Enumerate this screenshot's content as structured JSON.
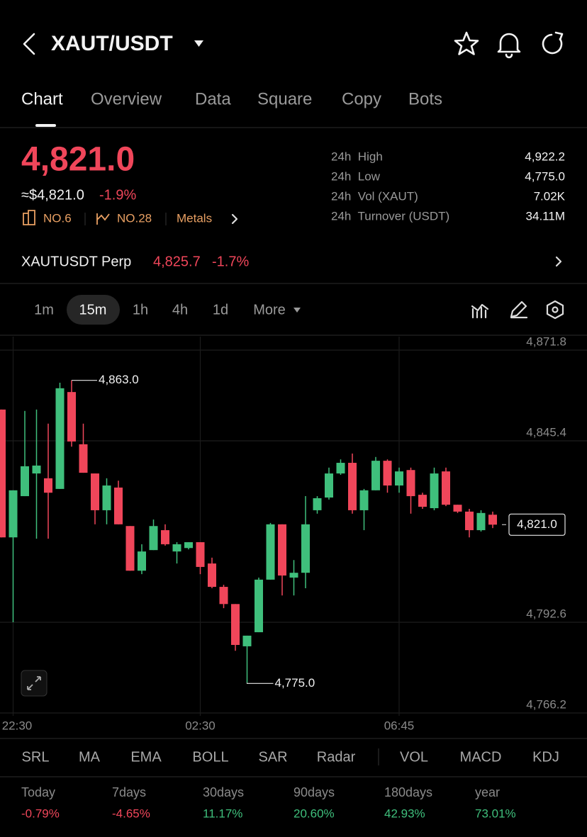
{
  "header": {
    "title": "XAUT/USDT"
  },
  "tabs": [
    "Chart",
    "Overview",
    "Data",
    "Square",
    "Copy",
    "Bots"
  ],
  "price": {
    "last": "4,821.0",
    "approx": "≈$4,821.0",
    "change": "-1.9%"
  },
  "badges": [
    "NO.6",
    "NO.28",
    "Metals"
  ],
  "stats": [
    {
      "label": "24h  High",
      "value": "4,922.2"
    },
    {
      "label": "24h  Low",
      "value": "4,775.0"
    },
    {
      "label": "24h  Vol (XAUT)",
      "value": "7.02K"
    },
    {
      "label": "24h  Turnover (USDT)",
      "value": "34.11M"
    }
  ],
  "perp": {
    "name": "XAUTUSDT Perp",
    "price": "4,825.7",
    "change": "-1.7%"
  },
  "timeframes": [
    "1m",
    "15m",
    "1h",
    "4h",
    "1d",
    "More"
  ],
  "indicators": [
    "SRL",
    "MA",
    "EMA",
    "BOLL",
    "SAR",
    "Radar",
    "VOL",
    "MACD",
    "KDJ"
  ],
  "performance": [
    {
      "period": "Today",
      "value": "-0.79%"
    },
    {
      "period": "7days",
      "value": "-4.65%"
    },
    {
      "period": "30days",
      "value": "11.17%"
    },
    {
      "period": "90days",
      "value": "20.60%"
    },
    {
      "period": "180days",
      "value": "42.93%"
    },
    {
      "period": "year",
      "value": "73.01%"
    }
  ],
  "chart_data": {
    "type": "candlestick",
    "categories": [
      null,
      "22:30",
      null,
      null,
      null,
      null,
      null,
      null,
      null,
      null,
      null,
      null,
      null,
      null,
      null,
      null,
      null,
      "02:30",
      null,
      null,
      null,
      null,
      null,
      null,
      null,
      null,
      null,
      null,
      null,
      null,
      null,
      null,
      null,
      null,
      "06:45",
      null,
      null,
      null,
      null,
      null,
      null,
      null,
      null
    ],
    "open": [
      4854.5,
      4817.3,
      4829.3,
      4835.9,
      4834.5,
      4831.4,
      4859.6,
      4844.4,
      4835.9,
      4825.2,
      4831.8,
      4820.6,
      4807.6,
      4813.6,
      4819.4,
      4813.2,
      4814.2,
      4815.9,
      4809.7,
      4802.9,
      4797.9,
      4785.6,
      4789.7,
      4805.0,
      4821.1,
      4805.6,
      4807.0,
      4825.2,
      4828.9,
      4835.9,
      4839.0,
      4825.2,
      4831.0,
      4839.6,
      4832.4,
      4836.9,
      4829.7,
      4825.8,
      4836.5,
      4826.8,
      4824.8,
      4819.4,
      4823.9
    ],
    "high": [
      4854.5,
      4831.0,
      4854.1,
      4854.5,
      4850.4,
      4862.3,
      4863.0,
      4850.4,
      4835.9,
      4834.5,
      4833.8,
      4820.6,
      4815.3,
      4822.5,
      4821.1,
      4815.9,
      4815.9,
      4815.9,
      4811.4,
      4803.5,
      4797.9,
      4788.7,
      4805.6,
      4821.5,
      4821.1,
      4810.7,
      4829.3,
      4829.3,
      4837.6,
      4840.0,
      4841.7,
      4831.4,
      4840.7,
      4840.0,
      4837.6,
      4837.6,
      4830.3,
      4837.6,
      4837.6,
      4826.8,
      4825.6,
      4825.2,
      4824.8
    ],
    "low": [
      4817.3,
      4792.6,
      4829.3,
      4816.9,
      4816.9,
      4831.4,
      4843.7,
      4836.1,
      4821.1,
      4821.1,
      4821.1,
      4807.6,
      4806.6,
      4813.6,
      4814.9,
      4809.7,
      4813.8,
      4806.6,
      4802.5,
      4796.7,
      4784.3,
      4775.0,
      4789.7,
      4805.0,
      4800.4,
      4800.4,
      4802.5,
      4824.2,
      4828.3,
      4835.5,
      4824.2,
      4819.4,
      4831.0,
      4830.3,
      4830.3,
      4824.2,
      4825.6,
      4825.2,
      4826.4,
      4824.4,
      4817.3,
      4819.0,
      4820.0
    ],
    "close": [
      4817.3,
      4831.0,
      4838.0,
      4838.2,
      4830.3,
      4860.7,
      4845.2,
      4836.1,
      4825.2,
      4832.4,
      4821.1,
      4807.6,
      4813.2,
      4820.6,
      4815.3,
      4815.3,
      4815.9,
      4808.7,
      4802.9,
      4797.9,
      4786.0,
      4788.7,
      4805.0,
      4821.1,
      4806.2,
      4807.0,
      4821.1,
      4828.7,
      4835.9,
      4839.0,
      4825.2,
      4831.0,
      4839.6,
      4832.4,
      4836.5,
      4829.3,
      4826.2,
      4835.9,
      4826.8,
      4824.8,
      4819.4,
      4824.4,
      4821.0
    ],
    "up_color": "#3fbf7c",
    "down_color": "#f0465a",
    "ylim": [
      4766.2,
      4871.8
    ],
    "yticks": [
      {
        "value": 4871.8,
        "label": "4,871.8"
      },
      {
        "value": 4845.4,
        "label": "4,845.4"
      },
      {
        "value": 4792.6,
        "label": "4,792.6"
      },
      {
        "value": 4766.2,
        "label": "4,766.2"
      }
    ],
    "grid": true,
    "annotations": [
      {
        "value": 4863.0,
        "label": "4,863.0"
      },
      {
        "value": 4775.0,
        "label": "4,775.0"
      }
    ],
    "last_price": {
      "value": 4821.0,
      "label": "4,821.0"
    }
  }
}
